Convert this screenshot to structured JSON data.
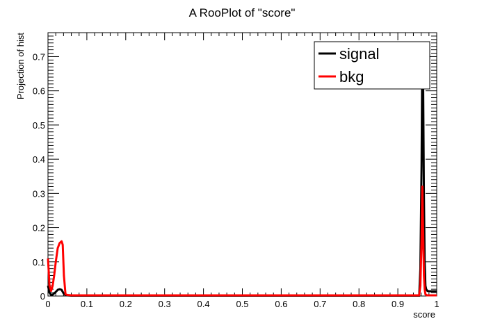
{
  "chart_data": {
    "type": "line",
    "title": "A RooPlot of \"score\"",
    "xlabel": "score",
    "ylabel": "Projection of hist",
    "xlim": [
      0,
      1
    ],
    "ylim": [
      0,
      0.77
    ],
    "x_ticks": [
      0,
      0.1,
      0.2,
      0.3,
      0.4,
      0.5,
      0.6,
      0.7,
      0.8,
      0.9,
      1
    ],
    "x_tick_labels": [
      "0",
      "0.1",
      "0.2",
      "0.3",
      "0.4",
      "0.5",
      "0.6",
      "0.7",
      "0.8",
      "0.9",
      "1"
    ],
    "y_ticks": [
      0,
      0.1,
      0.2,
      0.3,
      0.4,
      0.5,
      0.6,
      0.7
    ],
    "y_tick_labels": [
      "0",
      "0.1",
      "0.2",
      "0.3",
      "0.4",
      "0.5",
      "0.6",
      "0.7"
    ],
    "grid": false,
    "legend_position": "top-right",
    "series": [
      {
        "name": "signal",
        "color": "#000000",
        "x": [
          0,
          0.004,
          0.008,
          0.012,
          0.016,
          0.02,
          0.025,
          0.03,
          0.035,
          0.04,
          0.045,
          0.05,
          0.06,
          0.1,
          0.3,
          0.5,
          0.7,
          0.9,
          0.955,
          0.958,
          0.961,
          0.963,
          0.965,
          0.967,
          0.969,
          0.971,
          0.973,
          0.976,
          0.98,
          1
        ],
        "y": [
          0.03,
          0.01,
          0.003,
          0.004,
          0.008,
          0.012,
          0.018,
          0.02,
          0.018,
          0.008,
          0.003,
          0.002,
          0.001,
          0.001,
          0.001,
          0.001,
          0.001,
          0.001,
          0.001,
          0.08,
          0.38,
          0.73,
          0.65,
          0.3,
          0.1,
          0.03,
          0.02,
          0.015,
          0.014,
          0.014
        ]
      },
      {
        "name": "bkg",
        "color": "#ff0000",
        "x": [
          0,
          0.004,
          0.008,
          0.012,
          0.016,
          0.02,
          0.025,
          0.03,
          0.035,
          0.038,
          0.041,
          0.045,
          0.05,
          0.06,
          0.1,
          0.3,
          0.5,
          0.7,
          0.9,
          0.955,
          0.958,
          0.961,
          0.963,
          0.965,
          0.967,
          0.969,
          0.971,
          0.975,
          1
        ],
        "y": [
          0.11,
          0.03,
          0.015,
          0.03,
          0.06,
          0.1,
          0.14,
          0.155,
          0.16,
          0.15,
          0.06,
          0.005,
          0.003,
          0.002,
          0.002,
          0.002,
          0.002,
          0.002,
          0.002,
          0.002,
          0.03,
          0.16,
          0.32,
          0.2,
          0.06,
          0.02,
          0.005,
          0.002,
          0.002
        ]
      }
    ]
  }
}
